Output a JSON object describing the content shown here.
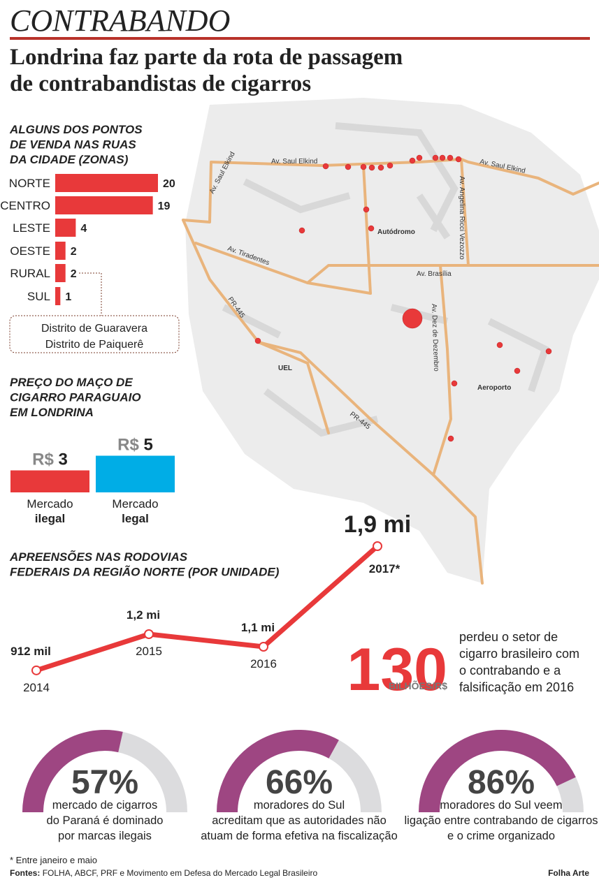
{
  "header": {
    "kicker": "CONTRABANDO",
    "title": [
      "Londrina faz parte da rota de passagem",
      "de contrabandistas de cigarros"
    ]
  },
  "map": {
    "labels": [
      "Av. Saul Elkind",
      "Av. Saul Elkind",
      "Av. Saul Elkind",
      "Autódromo",
      "Av. Tiradentes",
      "Av. Brasília",
      "Av. Angelina Ricci Vezozzo",
      "PR-445",
      "PR-445",
      "Av. Dez de Dezembro",
      "UEL",
      "Aeroporto"
    ]
  },
  "chart_data": [
    {
      "type": "hbar",
      "title": [
        "ALGUNS DOS PONTOS",
        "DE VENDA NAS RUAS",
        "DA CIDADE (ZONAS)"
      ],
      "categories": [
        "NORTE",
        "CENTRO",
        "LESTE",
        "OESTE",
        "RURAL",
        "SUL"
      ],
      "values": [
        20,
        19,
        4,
        2,
        2,
        1
      ],
      "color": "#e8393a",
      "annotation": [
        "Distrito de Guaravera",
        "Distrito de Paiquerê"
      ]
    },
    {
      "type": "column",
      "title": [
        "PREÇO DO MAÇO DE",
        "CIGARRO PARAGUAIO",
        "EM LONDRINA"
      ],
      "unit": "R$",
      "categories": [
        [
          "Mercado",
          "ilegal"
        ],
        [
          "Mercado",
          "legal"
        ]
      ],
      "values": [
        3,
        5
      ],
      "colors": [
        "#e8393a",
        "#00ade6"
      ]
    },
    {
      "type": "line",
      "title": [
        "APREENSÕES NAS RODOVIAS",
        "FEDERAIS DA REGIÃO NORTE (POR UNIDADE)"
      ],
      "x": [
        "2014",
        "2015",
        "2016",
        "2017*"
      ],
      "values": [
        912000,
        1200000,
        1100000,
        1900000
      ],
      "value_labels": [
        "912 mil",
        "1,2 mi",
        "1,1 mi",
        "1,9 mi"
      ],
      "color": "#e8393a"
    },
    {
      "type": "gauge",
      "values": [
        57,
        66,
        86
      ],
      "value_labels": [
        "57%",
        "66%",
        "86%"
      ],
      "ylim": [
        0,
        100
      ],
      "colors": [
        "#9e4682",
        "#dcdcde"
      ],
      "captions": [
        [
          "mercado de cigarros",
          "do Paraná é dominado",
          "por marcas ilegais"
        ],
        [
          "moradores do Sul",
          "acreditam que as autoridades não",
          "atuam de forma efetiva na fiscalização"
        ],
        [
          "moradores do Sul veem",
          "ligação entre contrabando de cigarros",
          "e o crime organizado"
        ]
      ]
    }
  ],
  "highlight": {
    "value": 130,
    "unit": "BILHÕES/R$",
    "text": [
      "perdeu o setor de",
      "cigarro brasileiro com",
      "o contrabando e a",
      "falsificação em 2016"
    ]
  },
  "footnote": "* Entre janeiro e maio",
  "sources": {
    "label": "Fontes:",
    "text": "FOLHA, ABCF, PRF e Movimento em Defesa do Mercado Legal Brasileiro"
  },
  "credit": "Folha Arte"
}
